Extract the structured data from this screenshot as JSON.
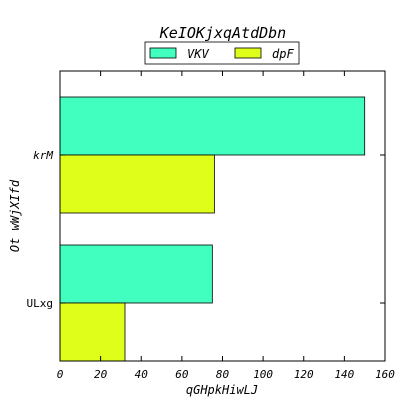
{
  "chart_data": {
    "type": "bar",
    "orientation": "horizontal",
    "title": "KeIOKjxqAtdDbn",
    "xlabel": "qGHpkHiwLJ",
    "ylabel": "Ot wWjXIfd",
    "categories": [
      "krM",
      "ULxg"
    ],
    "series": [
      {
        "name": "VKV",
        "color": "#40ffbf",
        "values": [
          150,
          75
        ]
      },
      {
        "name": "dpF",
        "color": "#dfff1a",
        "values": [
          76,
          32
        ]
      }
    ],
    "xlim": [
      0,
      160
    ],
    "xticks": [
      0,
      20,
      40,
      60,
      80,
      100,
      120,
      140,
      160
    ],
    "grid": false,
    "legend": "top-center"
  }
}
